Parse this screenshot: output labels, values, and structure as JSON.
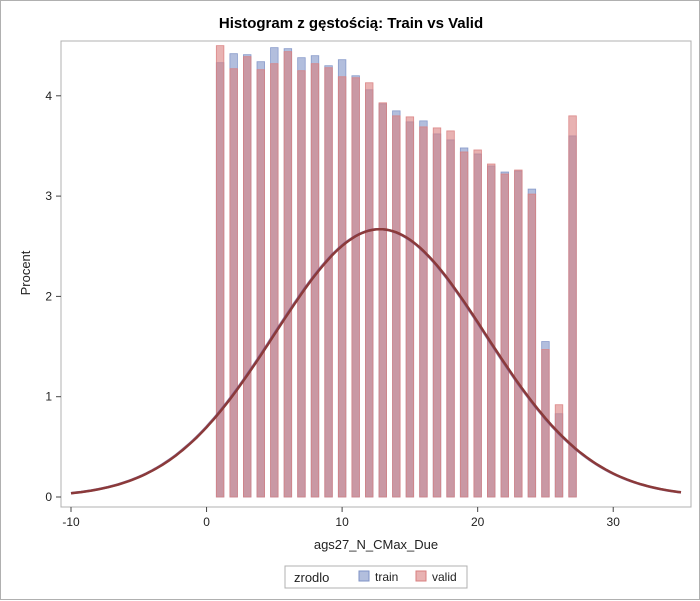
{
  "chart_data": {
    "type": "bar",
    "title": "Histogram z gęstością: Train vs Valid",
    "xlabel": "ags27_N_CMax_Due",
    "ylabel": "Procent",
    "xlim": [
      -10,
      35
    ],
    "ylim": [
      0,
      4.5
    ],
    "x_ticks": [
      -10,
      0,
      10,
      20,
      30
    ],
    "y_ticks": [
      0,
      1,
      2,
      3,
      4
    ],
    "grid": false,
    "legend": {
      "title": "zrodlo",
      "placement": "bottom",
      "entries": [
        "train",
        "valid"
      ]
    },
    "categories": [
      1,
      2,
      3,
      4,
      5,
      6,
      7,
      8,
      9,
      10,
      11,
      12,
      13,
      14,
      15,
      16,
      17,
      18,
      19,
      20,
      21,
      22,
      23,
      24,
      25,
      26,
      27
    ],
    "series": [
      {
        "name": "train",
        "color": "#7f93c6",
        "values": [
          4.33,
          4.42,
          4.41,
          4.34,
          4.48,
          4.47,
          4.38,
          4.4,
          4.3,
          4.36,
          4.2,
          4.06,
          3.92,
          3.85,
          3.74,
          3.75,
          3.62,
          3.56,
          3.48,
          3.42,
          3.3,
          3.24,
          3.25,
          3.07,
          1.55,
          0.83,
          3.6
        ]
      },
      {
        "name": "valid",
        "color": "#d97f7f",
        "values": [
          4.5,
          4.27,
          4.39,
          4.26,
          4.32,
          4.44,
          4.25,
          4.32,
          4.28,
          4.19,
          4.18,
          4.13,
          3.93,
          3.8,
          3.79,
          3.69,
          3.68,
          3.65,
          3.44,
          3.46,
          3.32,
          3.22,
          3.26,
          3.02,
          1.47,
          0.92,
          3.8
        ]
      }
    ],
    "density_curve": {
      "type": "normal",
      "mean": 12.8,
      "sd": 7.8,
      "scale_peak": 2.67,
      "color": "#8b3a3a"
    }
  }
}
